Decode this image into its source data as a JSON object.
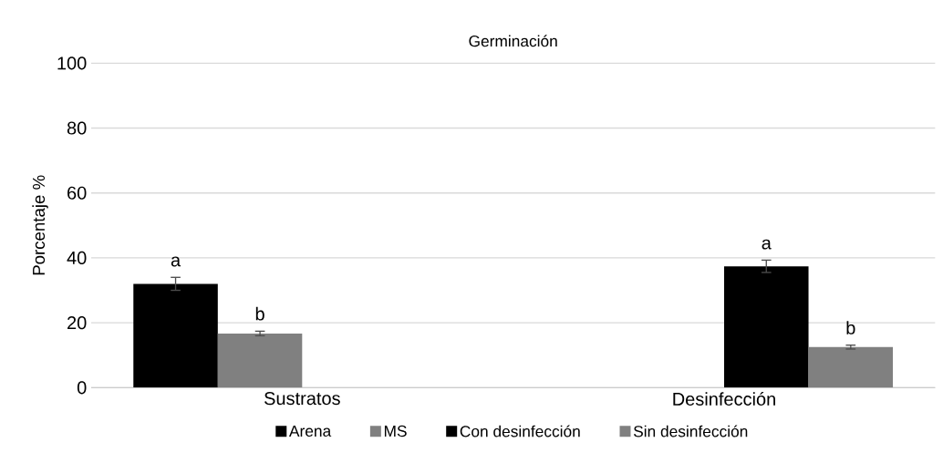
{
  "chart_data": {
    "type": "bar",
    "title": "Germinación",
    "ylabel": "Porcentaje  %",
    "categories": [
      "Sustratos",
      "Desinfección"
    ],
    "series": [
      {
        "name": "Arena",
        "color": "#000000",
        "values": [
          32,
          null
        ],
        "errors": [
          2,
          null
        ],
        "value_labels": [
          "a",
          null
        ]
      },
      {
        "name": "MS",
        "color": "#808080",
        "values": [
          16.7,
          null
        ],
        "errors": [
          0.7,
          null
        ],
        "value_labels": [
          "b",
          null
        ]
      },
      {
        "name": "Con desinfección",
        "color": "#000000",
        "values": [
          null,
          37.4
        ],
        "errors": [
          null,
          1.9
        ],
        "value_labels": [
          null,
          "a"
        ]
      },
      {
        "name": "Sin desinfección",
        "color": "#808080",
        "values": [
          null,
          12.5
        ],
        "errors": [
          null,
          0.6
        ],
        "value_labels": [
          null,
          "b"
        ]
      }
    ],
    "ylim": [
      0,
      100
    ],
    "yticks": [
      0,
      20,
      40,
      60,
      80,
      100
    ],
    "grid": "y",
    "legend": "bottom"
  }
}
